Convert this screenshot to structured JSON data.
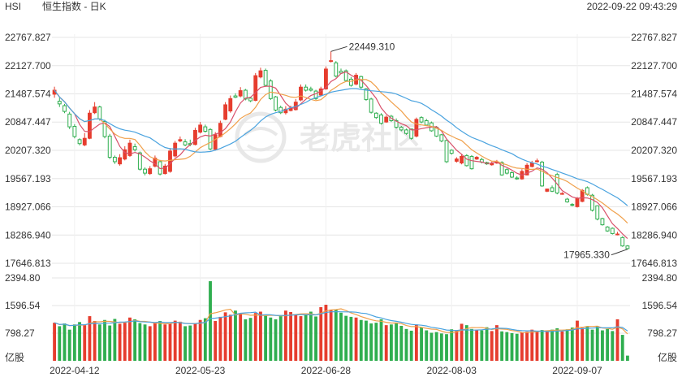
{
  "header": {
    "symbol": "HSI",
    "name": "恒生指数 - 日K",
    "timestamp": "2022-09-22 09:43:29"
  },
  "watermark": "老虎社区",
  "colors": {
    "up": "#e63d2e",
    "down": "#2fae4f",
    "ma5": "#d8506a",
    "ma10": "#f0a04b",
    "ma20": "#4aa3df",
    "vol_ma5": "#f0a04b",
    "vol_ma10": "#4aa3df",
    "grid": "#e6e6e6",
    "text": "#333333"
  },
  "chart_data": [
    {
      "type": "candlestick",
      "title": "恒生指数 - 日K",
      "y_ticks": [
        "22767.827",
        "22127.700",
        "21487.574",
        "20847.447",
        "20207.320",
        "19567.193",
        "18927.066",
        "18286.940",
        "17646.813"
      ],
      "ylim": [
        17646.813,
        22767.827
      ],
      "x_ticks": [
        "2022-04-12",
        "2022-05-23",
        "2022-06-28",
        "2022-08-03",
        "2022-09-07"
      ],
      "annotations": [
        {
          "label": "22449.310",
          "kind": "high"
        },
        {
          "label": "17965.330",
          "kind": "low"
        }
      ],
      "moving_averages": [
        "MA5",
        "MA10",
        "MA20"
      ],
      "x": [
        "04-06",
        "04-07",
        "04-08",
        "04-11",
        "04-12",
        "04-13",
        "04-14",
        "04-19",
        "04-20",
        "04-21",
        "04-22",
        "04-25",
        "04-26",
        "04-27",
        "04-28",
        "04-29",
        "05-03",
        "05-04",
        "05-05",
        "05-06",
        "05-10",
        "05-11",
        "05-12",
        "05-13",
        "05-16",
        "05-17",
        "05-18",
        "05-19",
        "05-20",
        "05-23",
        "05-24",
        "05-25",
        "05-26",
        "05-27",
        "05-30",
        "05-31",
        "06-01",
        "06-02",
        "06-06",
        "06-07",
        "06-08",
        "06-09",
        "06-10",
        "06-13",
        "06-14",
        "06-15",
        "06-16",
        "06-17",
        "06-20",
        "06-21",
        "06-22",
        "06-23",
        "06-24",
        "06-27",
        "06-28",
        "06-29",
        "06-30",
        "07-04",
        "07-05",
        "07-06",
        "07-07",
        "07-08",
        "07-11",
        "07-12",
        "07-13",
        "07-14",
        "07-15",
        "07-18",
        "07-19",
        "07-20",
        "07-21",
        "07-22",
        "07-25",
        "07-26",
        "07-27",
        "07-28",
        "07-29",
        "08-01",
        "08-02",
        "08-03",
        "08-04",
        "08-05",
        "08-08",
        "08-09",
        "08-10",
        "08-11",
        "08-12",
        "08-15",
        "08-16",
        "08-17",
        "08-18",
        "08-19",
        "08-22",
        "08-23",
        "08-24",
        "08-25",
        "08-26",
        "08-29",
        "08-30",
        "08-31",
        "09-01",
        "09-02",
        "09-05",
        "09-06",
        "09-07",
        "09-08",
        "09-09",
        "09-13",
        "09-14",
        "09-15",
        "09-16",
        "09-19",
        "09-20",
        "09-21",
        "09-22"
      ],
      "open": [
        21480,
        21320,
        21220,
        21030,
        20750,
        20450,
        20330,
        20480,
        21060,
        21190,
        20860,
        20530,
        20050,
        19900,
        20010,
        20090,
        20290,
        20150,
        19780,
        19680,
        19850,
        19950,
        19680,
        19730,
        20080,
        20420,
        20400,
        20360,
        20340,
        20620,
        20740,
        20680,
        20230,
        20520,
        20910,
        21100,
        21440,
        21440,
        21570,
        21390,
        21340,
        21870,
        22020,
        21780,
        21420,
        21180,
        21060,
        21110,
        21130,
        21350,
        21640,
        21600,
        21550,
        21460,
        21600,
        22240,
        22190,
        22000,
        22010,
        21820,
        21710,
        21880,
        21600,
        21370,
        21050,
        21010,
        20850,
        20980,
        20880,
        20730,
        20670,
        20690,
        20530,
        20950,
        20880,
        20830,
        20730,
        20560,
        20430,
        20210,
        19960,
        19920,
        20090,
        20070,
        20010,
        20000,
        19930,
        19880,
        19920,
        19930,
        19770,
        19700,
        19580,
        19560,
        19650,
        19840,
        19950,
        19940,
        19280,
        19360,
        19660,
        19220,
        19100,
        18980,
        18930,
        19050,
        19360,
        19190,
        18950,
        18660,
        18470,
        18440,
        18300,
        18230,
        18040
      ],
      "close": [
        21570,
        21260,
        21090,
        20740,
        20520,
        20360,
        20480,
        21050,
        21190,
        20920,
        20520,
        20050,
        19950,
        20040,
        20220,
        20370,
        20220,
        19780,
        19690,
        19790,
        20030,
        19670,
        19850,
        20190,
        20370,
        20450,
        20330,
        20340,
        20660,
        20780,
        20640,
        20240,
        20560,
        20820,
        21240,
        21380,
        21410,
        21560,
        21370,
        21330,
        21900,
        22010,
        21680,
        21380,
        21120,
        21060,
        21140,
        21170,
        21300,
        21640,
        21570,
        21570,
        21380,
        21600,
        22050,
        22240,
        21890,
        21960,
        21790,
        21680,
        21910,
        21640,
        21360,
        21070,
        20950,
        20820,
        20960,
        20880,
        20730,
        20670,
        20590,
        20480,
        20910,
        20850,
        20780,
        20650,
        20530,
        20420,
        19950,
        20140,
        20010,
        20070,
        19860,
        19790,
        20050,
        19940,
        19900,
        19910,
        19940,
        19650,
        19690,
        19600,
        19560,
        19730,
        19870,
        19920,
        19970,
        19400,
        19330,
        19280,
        19240,
        19230,
        19040,
        18970,
        19120,
        19300,
        19210,
        18850,
        18650,
        18520,
        18380,
        18320,
        18310,
        18040,
        17980
      ],
      "high": [
        21650,
        21400,
        21260,
        21080,
        20800,
        20480,
        20600,
        21120,
        21300,
        21220,
        20900,
        20580,
        20090,
        20120,
        20300,
        20450,
        20360,
        20180,
        19820,
        19850,
        20090,
        19990,
        19900,
        20260,
        20420,
        20520,
        20460,
        20450,
        20720,
        20850,
        20790,
        20710,
        20620,
        20880,
        21300,
        21450,
        21500,
        21640,
        21600,
        21420,
        21960,
        22080,
        22060,
        21820,
        21440,
        21220,
        21210,
        21220,
        21370,
        21700,
        21700,
        21650,
        21580,
        21650,
        22110,
        22449,
        22230,
        22060,
        22040,
        21870,
        21960,
        21900,
        21620,
        21400,
        21070,
        21050,
        21000,
        21010,
        20930,
        20760,
        20700,
        20700,
        20950,
        20980,
        20920,
        20860,
        20760,
        20580,
        20450,
        20230,
        20050,
        20120,
        20120,
        20100,
        20080,
        20040,
        19950,
        19950,
        19990,
        19960,
        19800,
        19730,
        19620,
        19780,
        19920,
        19970,
        20020,
        19970,
        19340,
        19410,
        19700,
        19260,
        19130,
        19010,
        19150,
        19330,
        19390,
        19220,
        18960,
        18680,
        18490,
        18460,
        18360,
        18260,
        18060
      ],
      "low": [
        21400,
        21190,
        21050,
        20690,
        20480,
        20320,
        20300,
        20460,
        21030,
        20880,
        20480,
        20010,
        19900,
        19860,
        19980,
        20060,
        20180,
        19750,
        19640,
        19650,
        19820,
        19640,
        19660,
        19700,
        20050,
        20390,
        20300,
        20300,
        20320,
        20590,
        20610,
        20210,
        20200,
        20500,
        20890,
        21060,
        21390,
        21410,
        21340,
        21300,
        21320,
        21840,
        21650,
        21350,
        21090,
        21030,
        21020,
        21090,
        21110,
        21320,
        21540,
        21540,
        21350,
        21430,
        21580,
        22200,
        21860,
        21940,
        21770,
        21650,
        21680,
        21600,
        21330,
        21040,
        20920,
        20790,
        20830,
        20850,
        20700,
        20640,
        20560,
        20450,
        20500,
        20820,
        20760,
        20630,
        20510,
        20390,
        19920,
        20110,
        19930,
        19890,
        19840,
        19770,
        19990,
        19910,
        19880,
        19860,
        19900,
        19630,
        19660,
        19580,
        19540,
        19540,
        19640,
        19820,
        19930,
        19380,
        19260,
        19260,
        19210,
        19200,
        19020,
        18940,
        18910,
        19030,
        19180,
        18820,
        18620,
        18500,
        18360,
        18300,
        18280,
        18020,
        17965.33
      ],
      "volume": [
        1100,
        1000,
        1080,
        900,
        1050,
        1120,
        1030,
        1290,
        1150,
        1050,
        1180,
        1020,
        1210,
        1070,
        1100,
        1250,
        1200,
        1090,
        1050,
        1000,
        1100,
        1150,
        1050,
        1070,
        1160,
        1130,
        1000,
        1020,
        1080,
        1180,
        1230,
        2300,
        1150,
        1270,
        1400,
        1330,
        1450,
        1350,
        1200,
        1240,
        1380,
        1420,
        1300,
        1250,
        1200,
        1310,
        1450,
        1410,
        1320,
        1290,
        1330,
        1420,
        1280,
        1550,
        1620,
        1480,
        1470,
        1390,
        1300,
        1270,
        1250,
        1180,
        1160,
        1080,
        1100,
        1200,
        1030,
        1050,
        1090,
        1010,
        920,
        870,
        1050,
        970,
        880,
        810,
        830,
        790,
        770,
        910,
        870,
        1070,
        1030,
        920,
        900,
        880,
        970,
        860,
        1030,
        850,
        830,
        800,
        780,
        820,
        840,
        900,
        850,
        890,
        860,
        900,
        940,
        850,
        910,
        960,
        1160,
        950,
        1000,
        900,
        1000,
        880,
        920,
        860,
        1200,
        750,
        150
      ],
      "volume_axis": {
        "ticks": [
          "2394.80",
          "1596.54",
          "798.27"
        ],
        "unit_label": "亿股",
        "ylim": [
          0,
          2394.8
        ]
      }
    }
  ]
}
